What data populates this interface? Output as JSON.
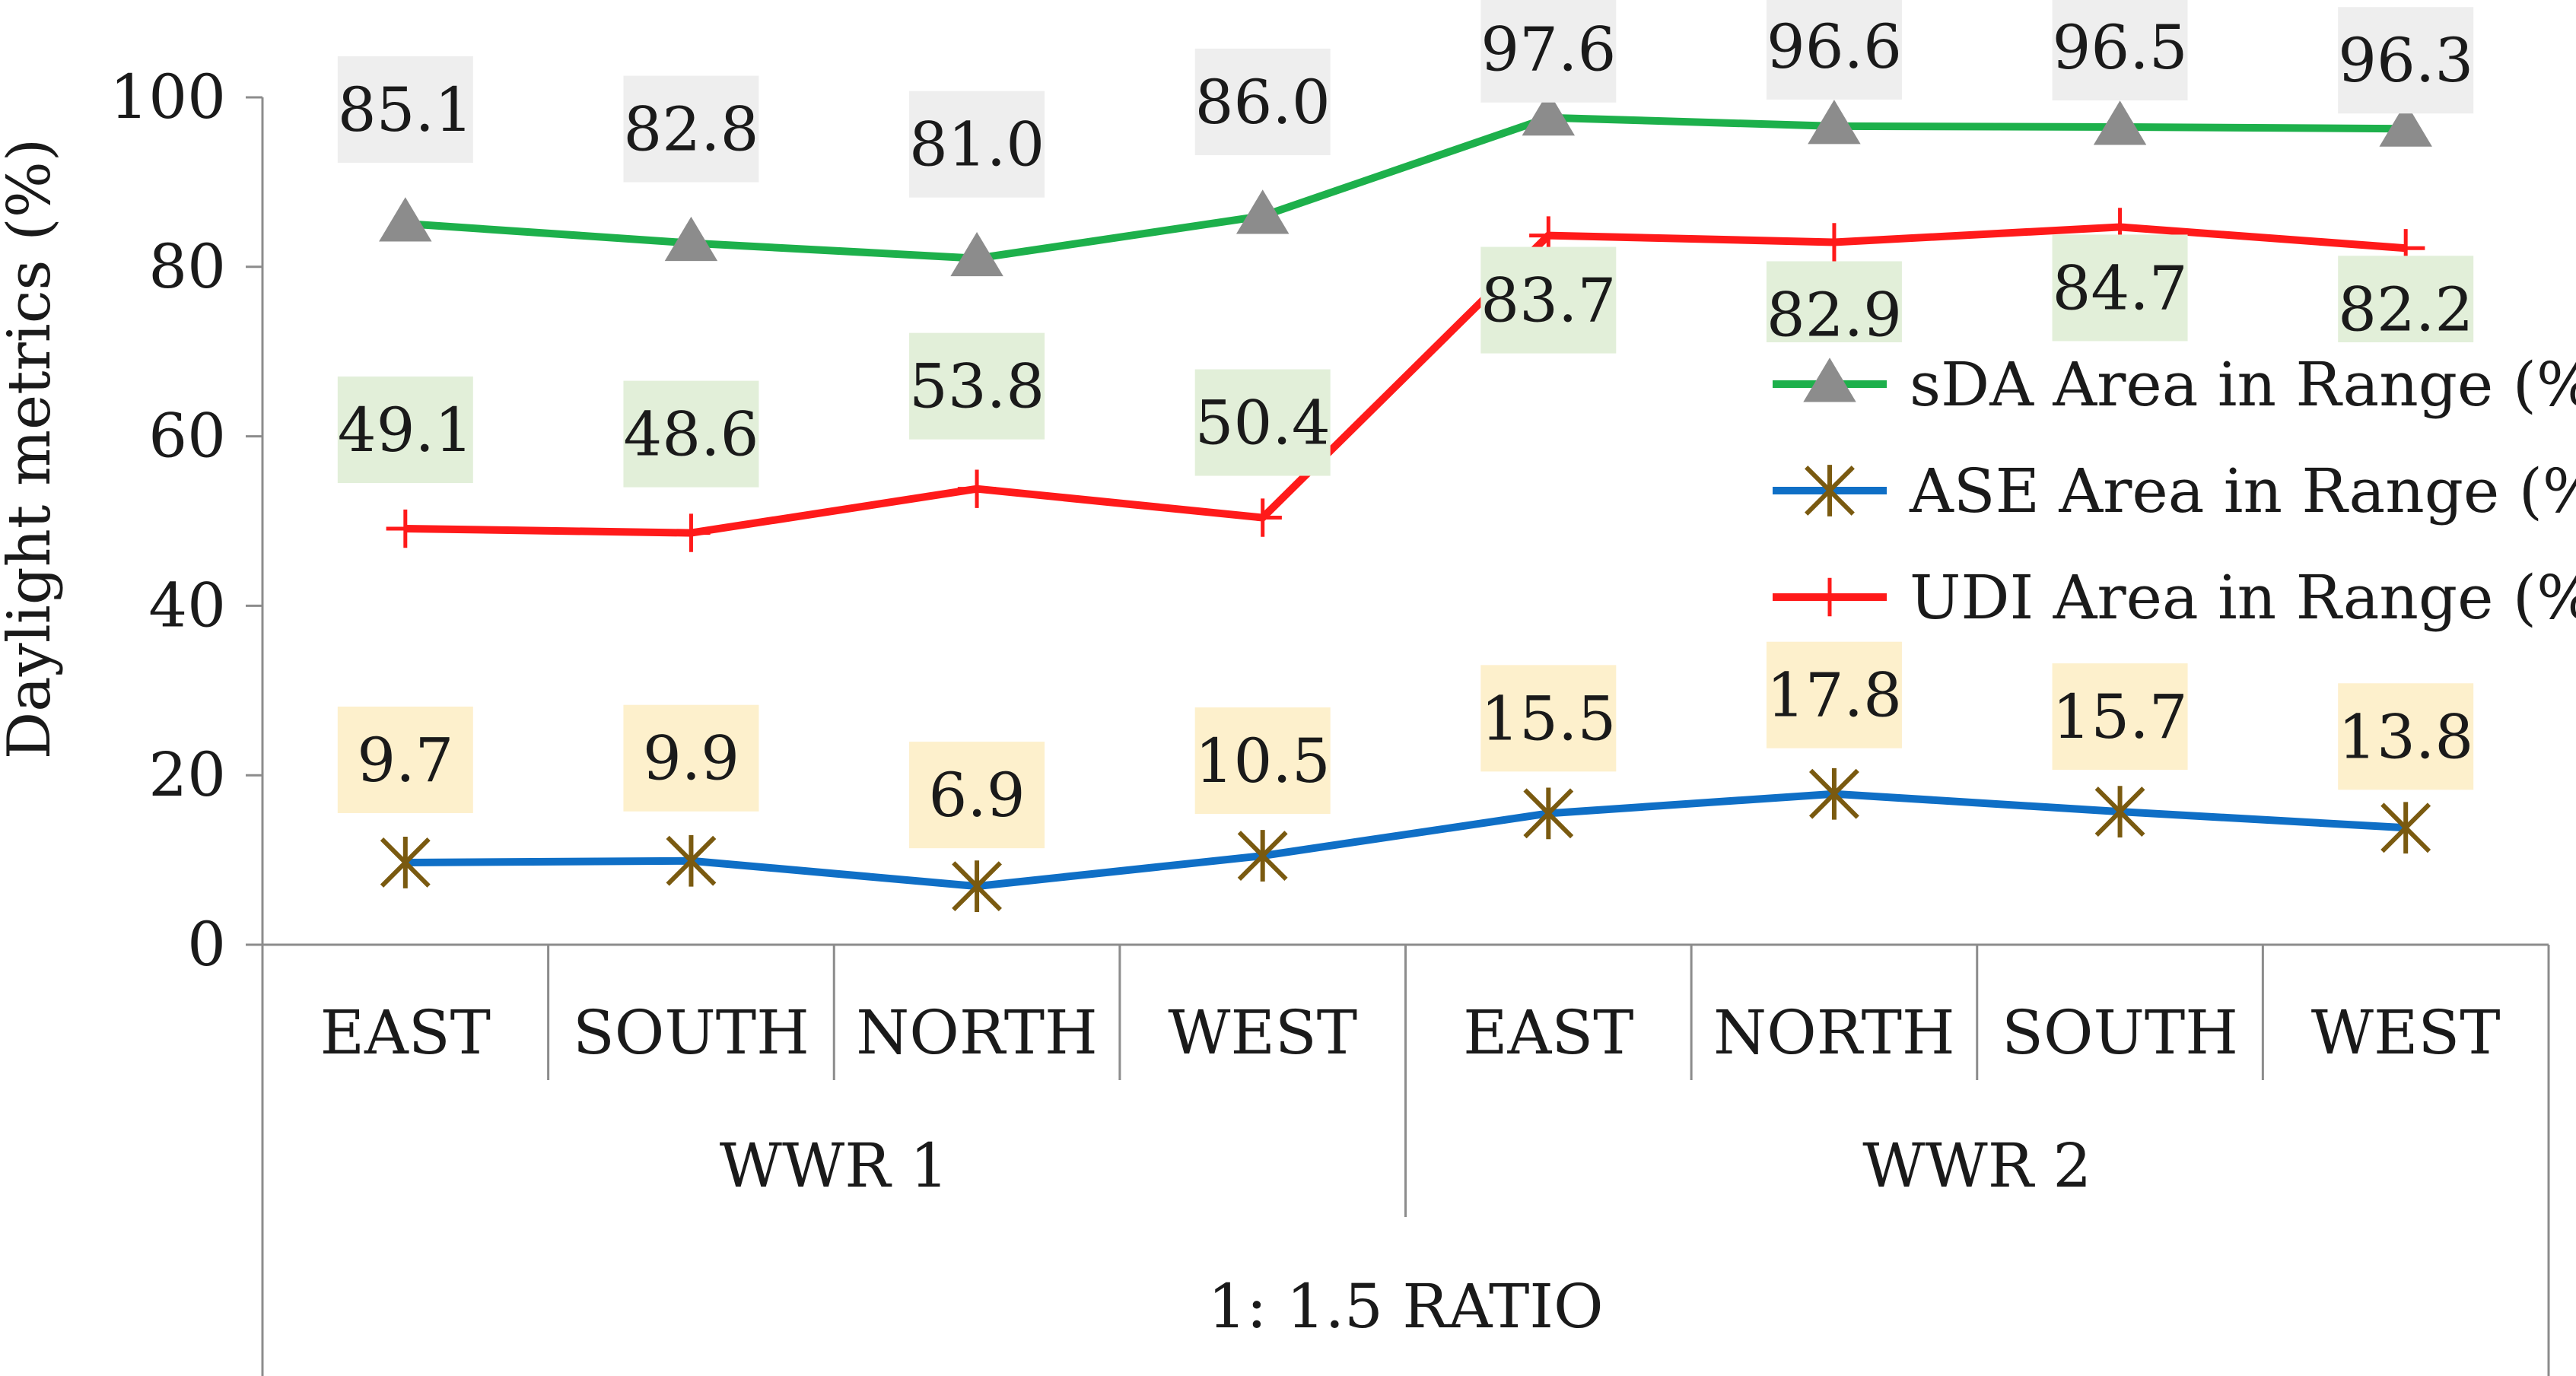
{
  "chart_data": {
    "type": "line",
    "ylabel": "Daylight metrics (%)",
    "ylim": [
      0,
      100
    ],
    "yticks": [
      "0",
      "20",
      "40",
      "60",
      "80",
      "100"
    ],
    "grid": false,
    "legend_position": "right",
    "categories": [
      "EAST",
      "SOUTH",
      "NORTH",
      "WEST",
      "EAST",
      "NORTH",
      "SOUTH",
      "WEST"
    ],
    "groups": [
      {
        "label": "WWR 1",
        "span": 4
      },
      {
        "label": "WWR 2",
        "span": 4
      }
    ],
    "outer_group": "1: 1.5  RATIO",
    "series": [
      {
        "name": "sDA Area in Range (%)",
        "values": [
          85.1,
          82.8,
          81.0,
          86.0,
          97.6,
          96.6,
          96.5,
          96.3
        ],
        "labels": [
          "85.1",
          "82.8",
          "81.0",
          "86.0",
          "97.6",
          "96.6",
          "96.5",
          "96.3"
        ],
        "color": "#1db04b",
        "marker": "triangle",
        "marker_color": "#8c8c8c",
        "label_bg": "#eeeeee"
      },
      {
        "name": "ASE Area in Range (%)",
        "values": [
          9.7,
          9.9,
          6.9,
          10.5,
          15.5,
          17.8,
          15.7,
          13.8
        ],
        "labels": [
          "9.7",
          "9.9",
          "6.9",
          "10.5",
          "15.5",
          "17.8",
          "15.7",
          "13.8"
        ],
        "color": "#0f6fc6",
        "marker": "star",
        "marker_color": "#7a5a10",
        "label_bg": "#fdf0cc"
      },
      {
        "name": "UDI Area in Range (%)",
        "values": [
          49.1,
          48.6,
          53.8,
          50.4,
          83.7,
          82.9,
          84.7,
          82.2
        ],
        "labels": [
          "49.1",
          "48.6",
          "53.8",
          "50.4",
          "83.7",
          "82.9",
          "84.7",
          "82.2"
        ],
        "color": "#ff1a1a",
        "marker": "plus",
        "marker_color": "#ff1a1a",
        "label_bg": "#e2efd9"
      }
    ]
  }
}
